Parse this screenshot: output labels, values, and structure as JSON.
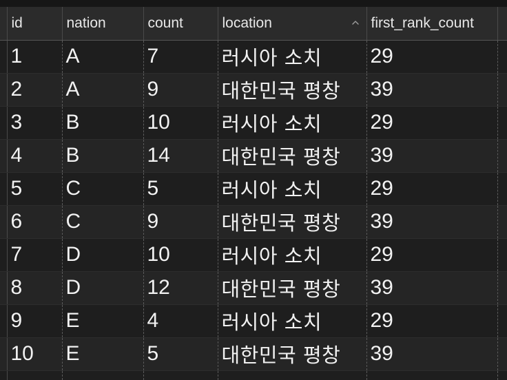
{
  "table": {
    "columns": [
      {
        "label": "id"
      },
      {
        "label": "nation"
      },
      {
        "label": "count"
      },
      {
        "label": "location"
      },
      {
        "label": "first_rank_count"
      }
    ],
    "sort_indicator_icon": "chevron-up-icon",
    "rows": [
      {
        "id": "1",
        "nation": "A",
        "count": "7",
        "location": "러시아 소치",
        "first_rank_count": "29"
      },
      {
        "id": "2",
        "nation": "A",
        "count": "9",
        "location": "대한민국 평창",
        "first_rank_count": "39"
      },
      {
        "id": "3",
        "nation": "B",
        "count": "10",
        "location": "러시아 소치",
        "first_rank_count": "29"
      },
      {
        "id": "4",
        "nation": "B",
        "count": "14",
        "location": "대한민국 평창",
        "first_rank_count": "39"
      },
      {
        "id": "5",
        "nation": "C",
        "count": "5",
        "location": "러시아 소치",
        "first_rank_count": "29"
      },
      {
        "id": "6",
        "nation": "C",
        "count": "9",
        "location": "대한민국 평창",
        "first_rank_count": "39"
      },
      {
        "id": "7",
        "nation": "D",
        "count": "10",
        "location": "러시아 소치",
        "first_rank_count": "29"
      },
      {
        "id": "8",
        "nation": "D",
        "count": "12",
        "location": "대한민국 평창",
        "first_rank_count": "39"
      },
      {
        "id": "9",
        "nation": "E",
        "count": "4",
        "location": "러시아 소치",
        "first_rank_count": "29"
      },
      {
        "id": "10",
        "nation": "E",
        "count": "5",
        "location": "대한민국 평창",
        "first_rank_count": "39"
      }
    ]
  }
}
